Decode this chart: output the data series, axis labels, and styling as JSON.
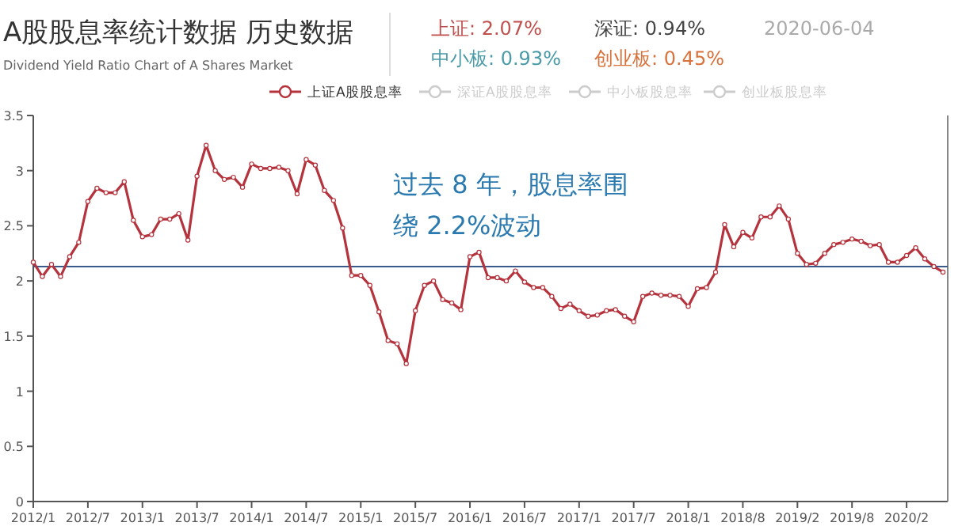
{
  "chart_data": {
    "type": "line",
    "title": "A股股息率统计数据 历史数据",
    "subtitle": "Dividend Yield Ratio Chart of A Shares Market",
    "annotations": [
      "上证: 2.07%",
      "深证: 0.94%",
      "2020-06-04",
      "中小板: 0.93%",
      "创业板: 0.45%",
      "过去 8 年，股息率围绕 2.2%波动"
    ],
    "categories": [
      "2012/1",
      null,
      null,
      null,
      null,
      null,
      "2012/7",
      null,
      null,
      null,
      null,
      null,
      "2013/1",
      null,
      null,
      null,
      null,
      null,
      "2013/7",
      null,
      null,
      null,
      null,
      null,
      "2014/1",
      null,
      null,
      null,
      null,
      null,
      "2014/7",
      null,
      null,
      null,
      null,
      null,
      "2015/1",
      null,
      null,
      null,
      null,
      null,
      "2015/7",
      null,
      null,
      null,
      null,
      null,
      "2016/1",
      null,
      null,
      null,
      null,
      null,
      "2016/7",
      null,
      null,
      null,
      null,
      null,
      "2017/1",
      null,
      null,
      null,
      null,
      null,
      "2017/7",
      null,
      null,
      null,
      null,
      null,
      "2018/1",
      null,
      null,
      null,
      null,
      null,
      "2018/8",
      null,
      null,
      null,
      null,
      null,
      "2019/2",
      null,
      null,
      null,
      null,
      null,
      "2019/8",
      null,
      null,
      null,
      null,
      null,
      "2020/2",
      null,
      null,
      null,
      null
    ],
    "series": [
      {
        "name": "上证A股股息率",
        "color": "#b5333d",
        "values": [
          2.17,
          2.04,
          2.15,
          2.04,
          2.22,
          2.35,
          2.72,
          2.84,
          2.8,
          2.8,
          2.9,
          2.55,
          2.4,
          2.42,
          2.56,
          2.56,
          2.61,
          2.37,
          2.95,
          3.23,
          3.0,
          2.92,
          2.94,
          2.85,
          3.06,
          3.02,
          3.02,
          3.03,
          3.0,
          2.79,
          3.1,
          3.05,
          2.82,
          2.73,
          2.48,
          2.05,
          2.05,
          1.96,
          1.72,
          1.46,
          1.43,
          1.25,
          1.73,
          1.96,
          2.0,
          1.83,
          1.8,
          1.74,
          2.22,
          2.26,
          2.03,
          2.03,
          2.0,
          2.09,
          1.99,
          1.94,
          1.94,
          1.86,
          1.75,
          1.79,
          1.73,
          1.68,
          1.69,
          1.73,
          1.74,
          1.68,
          1.63,
          1.86,
          1.89,
          1.87,
          1.87,
          1.86,
          1.77,
          1.93,
          1.94,
          2.08,
          2.51,
          2.31,
          2.44,
          2.39,
          2.58,
          2.58,
          2.68,
          2.56,
          2.25,
          2.15,
          2.16,
          2.25,
          2.33,
          2.35,
          2.38,
          2.36,
          2.32,
          2.33,
          2.17,
          2.17,
          2.23,
          2.3,
          2.2,
          2.13,
          2.08
        ]
      },
      {
        "name": "深证A股股息率",
        "color": "#cccccc",
        "values": [
          null,
          null,
          null,
          null,
          null,
          null,
          null,
          null,
          null,
          null,
          null,
          null,
          null,
          null,
          null,
          null,
          null,
          null,
          null,
          null,
          null,
          null,
          null,
          null,
          null,
          null,
          null,
          null,
          null,
          null,
          null,
          null,
          null,
          null,
          null,
          null,
          null,
          null,
          null,
          null,
          null,
          null,
          null,
          null,
          null,
          null,
          null,
          null,
          null,
          null,
          null,
          null,
          null,
          null,
          null,
          null,
          null,
          null,
          null,
          null,
          null,
          null,
          null,
          null,
          null,
          null,
          null,
          null,
          null,
          null,
          null,
          null,
          null,
          null,
          null,
          null,
          null,
          null,
          null,
          null,
          null,
          null,
          null,
          null,
          null,
          null,
          null,
          null,
          null,
          null,
          null,
          null,
          null,
          null,
          null,
          null,
          null,
          null,
          null,
          null,
          null
        ]
      },
      {
        "name": "中小板股息率",
        "color": "#cccccc",
        "values": [
          null,
          null,
          null,
          null,
          null,
          null,
          null,
          null,
          null,
          null,
          null,
          null,
          null,
          null,
          null,
          null,
          null,
          null,
          null,
          null,
          null,
          null,
          null,
          null,
          null,
          null,
          null,
          null,
          null,
          null,
          null,
          null,
          null,
          null,
          null,
          null,
          null,
          null,
          null,
          null,
          null,
          null,
          null,
          null,
          null,
          null,
          null,
          null,
          null,
          null,
          null,
          null,
          null,
          null,
          null,
          null,
          null,
          null,
          null,
          null,
          null,
          null,
          null,
          null,
          null,
          null,
          null,
          null,
          null,
          null,
          null,
          null,
          null,
          null,
          null,
          null,
          null,
          null,
          null,
          null,
          null,
          null,
          null,
          null,
          null,
          null,
          null,
          null,
          null,
          null,
          null,
          null,
          null,
          null,
          null,
          null,
          null,
          null,
          null,
          null,
          null
        ]
      },
      {
        "name": "创业板股息率",
        "color": "#cccccc",
        "values": [
          null,
          null,
          null,
          null,
          null,
          null,
          null,
          null,
          null,
          null,
          null,
          null,
          null,
          null,
          null,
          null,
          null,
          null,
          null,
          null,
          null,
          null,
          null,
          null,
          null,
          null,
          null,
          null,
          null,
          null,
          null,
          null,
          null,
          null,
          null,
          null,
          null,
          null,
          null,
          null,
          null,
          null,
          null,
          null,
          null,
          null,
          null,
          null,
          null,
          null,
          null,
          null,
          null,
          null,
          null,
          null,
          null,
          null,
          null,
          null,
          null,
          null,
          null,
          null,
          null,
          null,
          null,
          null,
          null,
          null,
          null,
          null,
          null,
          null,
          null,
          null,
          null,
          null,
          null,
          null,
          null,
          null,
          null,
          null,
          null,
          null,
          null,
          null,
          null,
          null,
          null,
          null,
          null,
          null,
          null,
          null,
          null,
          null,
          null,
          null,
          null
        ]
      }
    ],
    "ylim": [
      0,
      3.5
    ],
    "yticks": [
      0,
      0.5,
      1,
      1.5,
      2,
      2.5,
      3,
      3.5
    ],
    "ref_lines": [
      {
        "axis": "y",
        "value": 2.13,
        "color": "#3a5a8c"
      }
    ],
    "legend": "top",
    "marker": "circle",
    "line_style": "solid"
  }
}
